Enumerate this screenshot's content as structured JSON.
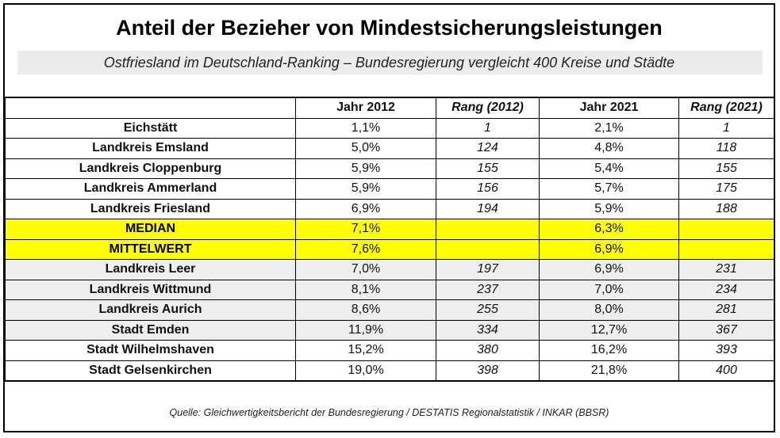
{
  "title": "Anteil der Bezieher von Mindestsicherungsleistungen",
  "subtitle": "Ostfriesland im Deutschland-Ranking – Bundesregierung vergleicht 400 Kreise und Städte",
  "table": {
    "headers": [
      "",
      "Jahr 2012",
      "Rang (2012)",
      "Jahr 2021",
      "Rang (2021)"
    ],
    "rows": [
      {
        "name": "Eichstätt",
        "y2012": "1,1%",
        "r2012": "1",
        "y2021": "2,1%",
        "r2021": "1",
        "style": "white"
      },
      {
        "name": "Landkreis Emsland",
        "y2012": "5,0%",
        "r2012": "124",
        "y2021": "4,8%",
        "r2021": "118",
        "style": "white"
      },
      {
        "name": "Landkreis Cloppenburg",
        "y2012": "5,9%",
        "r2012": "155",
        "y2021": "5,4%",
        "r2021": "155",
        "style": "white"
      },
      {
        "name": "Landkreis Ammerland",
        "y2012": "5,9%",
        "r2012": "156",
        "y2021": "5,7%",
        "r2021": "175",
        "style": "white"
      },
      {
        "name": "Landkreis Friesland",
        "y2012": "6,9%",
        "r2012": "194",
        "y2021": "5,9%",
        "r2021": "188",
        "style": "white"
      },
      {
        "name": "MEDIAN",
        "y2012": "7,1%",
        "r2012": "",
        "y2021": "6,3%",
        "r2021": "",
        "style": "hl"
      },
      {
        "name": "MITTELWERT",
        "y2012": "7,6%",
        "r2012": "",
        "y2021": "6,9%",
        "r2021": "",
        "style": "hl"
      },
      {
        "name": "Landkreis Leer",
        "y2012": "7,0%",
        "r2012": "197",
        "y2021": "6,9%",
        "r2021": "231",
        "style": "grey"
      },
      {
        "name": "Landkreis Wittmund",
        "y2012": "8,1%",
        "r2012": "237",
        "y2021": "7,0%",
        "r2021": "234",
        "style": "grey"
      },
      {
        "name": "Landkreis Aurich",
        "y2012": "8,6%",
        "r2012": "255",
        "y2021": "8,0%",
        "r2021": "281",
        "style": "grey"
      },
      {
        "name": "Stadt Emden",
        "y2012": "11,9%",
        "r2012": "334",
        "y2021": "12,7%",
        "r2021": "367",
        "style": "grey"
      },
      {
        "name": "Stadt Wilhelmshaven",
        "y2012": "15,2%",
        "r2012": "380",
        "y2021": "16,2%",
        "r2021": "393",
        "style": "white"
      },
      {
        "name": "Stadt Gelsenkirchen",
        "y2012": "19,0%",
        "r2012": "398",
        "y2021": "21,8%",
        "r2021": "400",
        "style": "white"
      }
    ]
  },
  "source": "Quelle: Gleichwertigkeitsbericht der Bundesregierung / DESTATIS Regionalstatistik / INKAR (BBSR)",
  "colors": {
    "highlight": "#ffff00",
    "grey_row": "#eeeeee",
    "subtitle_band": "#ececec"
  }
}
